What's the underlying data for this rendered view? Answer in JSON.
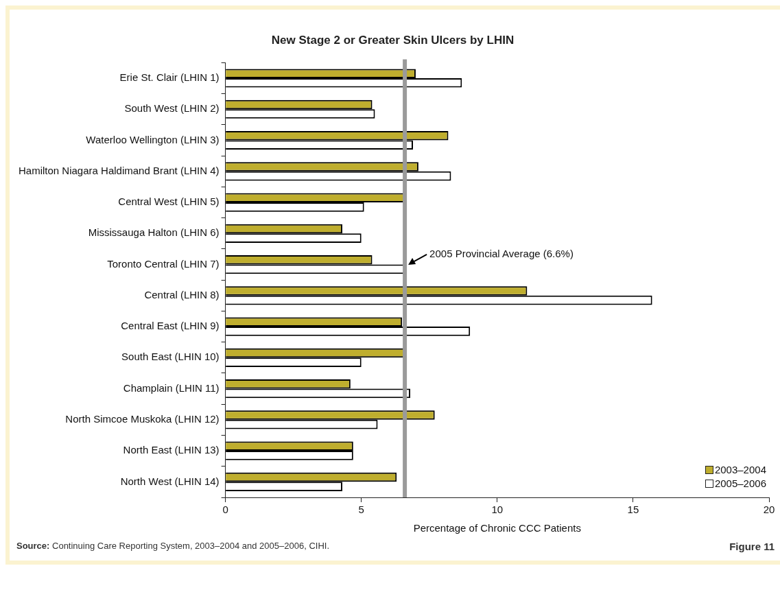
{
  "chart_data": {
    "type": "bar",
    "orientation": "horizontal",
    "title": "New Stage 2 or Greater Skin Ulcers by LHIN",
    "xlabel": "Percentage of Chronic CCC Patients",
    "categories": [
      "Erie St. Clair (LHIN 1)",
      "South West (LHIN 2)",
      "Waterloo Wellington (LHIN 3)",
      "Hamilton Niagara Haldimand Brant (LHIN 4)",
      "Central West (LHIN 5)",
      "Mississauga Halton (LHIN 6)",
      "Toronto Central (LHIN 7)",
      "Central (LHIN 8)",
      "Central East (LHIN 9)",
      "South East (LHIN 10)",
      "Champlain (LHIN 11)",
      "North Simcoe Muskoka (LHIN 12)",
      "North East (LHIN 13)",
      "North West (LHIN 14)"
    ],
    "series": [
      {
        "name": "2003–2004",
        "color": "#bfae2e",
        "values": [
          7.0,
          5.4,
          8.2,
          7.1,
          6.6,
          4.3,
          5.4,
          11.1,
          6.5,
          6.6,
          4.6,
          7.7,
          4.7,
          6.3
        ]
      },
      {
        "name": "2005–2006",
        "color": "#ffffff",
        "values": [
          8.7,
          5.5,
          6.9,
          8.3,
          5.1,
          5.0,
          6.6,
          15.7,
          9.0,
          5.0,
          6.8,
          5.6,
          4.7,
          4.3
        ]
      }
    ],
    "xlim": [
      0,
      20
    ],
    "xticks": [
      0,
      5,
      10,
      15,
      20
    ],
    "grid": false,
    "legend": "bottom right",
    "ref_lines": [
      {
        "axis": "x",
        "value": 6.6,
        "label": "2005 Provincial Average (6.6%)",
        "color": "#9a9a9a"
      }
    ],
    "annotations": [
      "Source: Continuing Care Reporting System, 2003–2004 and 2005–2006, CIHI.",
      "Figure 11"
    ]
  }
}
